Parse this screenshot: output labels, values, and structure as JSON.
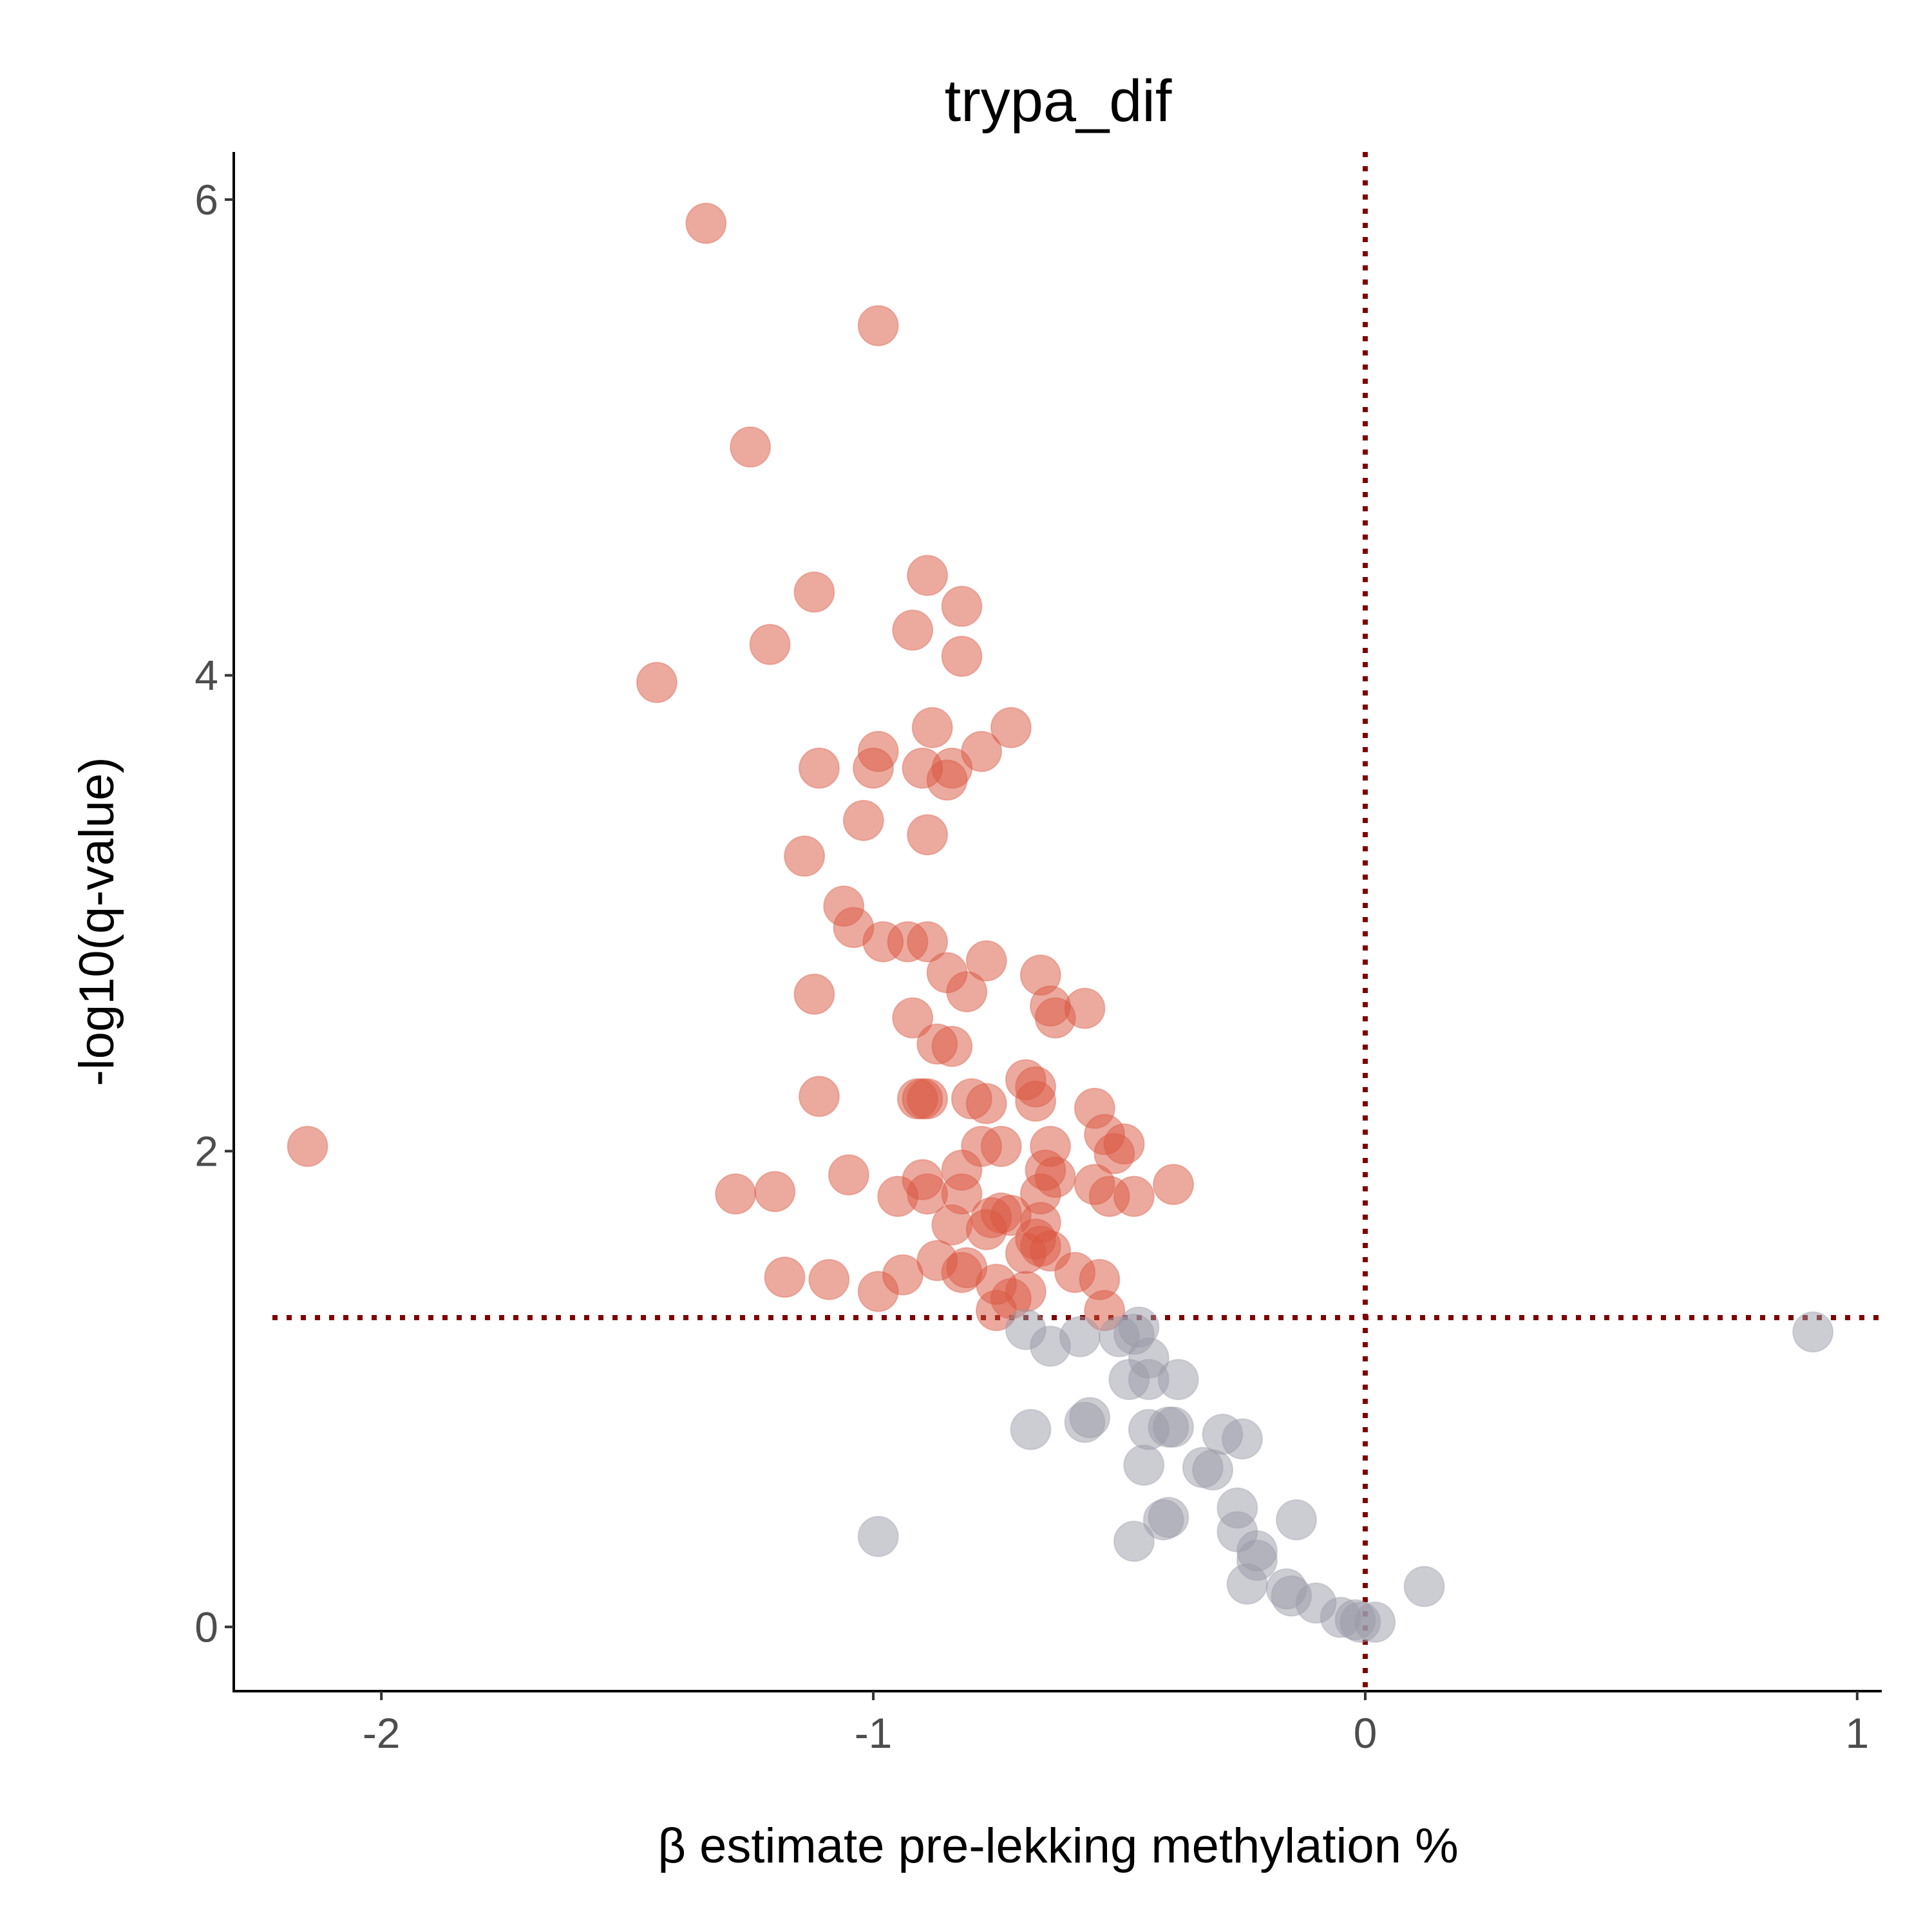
{
  "chart_data": {
    "type": "scatter",
    "title": "trypa_dif",
    "xlabel": "β estimate pre-lekking methylation %",
    "ylabel": "-log10(q-value)",
    "xlim": [
      -2.3,
      1.05
    ],
    "ylim": [
      -0.27,
      6.2
    ],
    "xticks": [
      -2,
      -1,
      0,
      1
    ],
    "xtick_labels": [
      "-2",
      "-1",
      "0",
      "1"
    ],
    "yticks": [
      0,
      2,
      4,
      6
    ],
    "ytick_labels": [
      "0",
      "2",
      "4",
      "6"
    ],
    "grid": false,
    "reference_lines": {
      "vertical_x": 0,
      "horizontal_y": 1.3,
      "color": "#800000",
      "style": "dotted"
    },
    "colors": {
      "significant": "#d9553f",
      "not_significant": "#9a9aa8"
    },
    "series": [
      {
        "color_key": "significant",
        "points": [
          [
            -1.34,
            5.9
          ],
          [
            -0.99,
            5.47
          ],
          [
            -1.25,
            4.96
          ],
          [
            -0.89,
            4.42
          ],
          [
            -1.12,
            4.35
          ],
          [
            -0.82,
            4.29
          ],
          [
            -1.21,
            4.13
          ],
          [
            -0.92,
            4.19
          ],
          [
            -0.82,
            4.08
          ],
          [
            -1.44,
            3.97
          ],
          [
            -0.88,
            3.78
          ],
          [
            -0.72,
            3.78
          ],
          [
            -0.99,
            3.68
          ],
          [
            -0.78,
            3.68
          ],
          [
            -1.11,
            3.61
          ],
          [
            -1.0,
            3.61
          ],
          [
            -0.9,
            3.61
          ],
          [
            -0.85,
            3.56
          ],
          [
            -0.84,
            3.61
          ],
          [
            -1.02,
            3.39
          ],
          [
            -0.89,
            3.33
          ],
          [
            -1.14,
            3.24
          ],
          [
            -1.06,
            3.03
          ],
          [
            -1.04,
            2.94
          ],
          [
            -0.98,
            2.88
          ],
          [
            -0.93,
            2.88
          ],
          [
            -0.89,
            2.88
          ],
          [
            -0.77,
            2.8
          ],
          [
            -0.85,
            2.75
          ],
          [
            -0.66,
            2.74
          ],
          [
            -0.81,
            2.67
          ],
          [
            -1.12,
            2.66
          ],
          [
            -0.64,
            2.61
          ],
          [
            -0.57,
            2.6
          ],
          [
            -0.92,
            2.56
          ],
          [
            -0.63,
            2.56
          ],
          [
            -0.87,
            2.45
          ],
          [
            -0.84,
            2.44
          ],
          [
            -0.69,
            2.3
          ],
          [
            -0.67,
            2.27
          ],
          [
            -0.67,
            2.21
          ],
          [
            -1.11,
            2.23
          ],
          [
            -0.91,
            2.22
          ],
          [
            -0.9,
            2.22
          ],
          [
            -0.89,
            2.22
          ],
          [
            -0.8,
            2.22
          ],
          [
            -0.77,
            2.2
          ],
          [
            -0.55,
            2.18
          ],
          [
            -0.53,
            2.07
          ],
          [
            -0.49,
            2.03
          ],
          [
            -0.51,
            1.99
          ],
          [
            -0.78,
            2.02
          ],
          [
            -0.74,
            2.02
          ],
          [
            -0.64,
            2.02
          ],
          [
            -0.65,
            1.92
          ],
          [
            -0.63,
            1.89
          ],
          [
            -0.82,
            1.92
          ],
          [
            -1.05,
            1.9
          ],
          [
            -0.9,
            1.88
          ],
          [
            -0.55,
            1.86
          ],
          [
            -0.39,
            1.86
          ],
          [
            -1.28,
            1.82
          ],
          [
            -1.2,
            1.83
          ],
          [
            -0.95,
            1.81
          ],
          [
            -0.89,
            1.82
          ],
          [
            -0.82,
            1.82
          ],
          [
            -0.66,
            1.82
          ],
          [
            -0.52,
            1.81
          ],
          [
            -0.47,
            1.81
          ],
          [
            -0.76,
            1.72
          ],
          [
            -0.74,
            1.74
          ],
          [
            -0.72,
            1.73
          ],
          [
            -0.66,
            1.7
          ],
          [
            -0.84,
            1.69
          ],
          [
            -0.77,
            1.67
          ],
          [
            -0.67,
            1.63
          ],
          [
            -0.66,
            1.6
          ],
          [
            -0.64,
            1.58
          ],
          [
            -0.69,
            1.57
          ],
          [
            -0.87,
            1.54
          ],
          [
            -0.82,
            1.49
          ],
          [
            -0.81,
            1.51
          ],
          [
            -0.59,
            1.49
          ],
          [
            -0.54,
            1.46
          ],
          [
            -1.18,
            1.47
          ],
          [
            -1.09,
            1.46
          ],
          [
            -0.94,
            1.48
          ],
          [
            -0.75,
            1.44
          ],
          [
            -0.72,
            1.38
          ],
          [
            -0.69,
            1.41
          ],
          [
            -0.99,
            1.41
          ],
          [
            -0.53,
            1.33
          ],
          [
            -0.75,
            1.33
          ],
          [
            -2.15,
            2.02
          ]
        ]
      },
      {
        "color_key": "not_significant",
        "points": [
          [
            -0.69,
            1.25
          ],
          [
            -0.64,
            1.18
          ],
          [
            -0.58,
            1.22
          ],
          [
            -0.5,
            1.22
          ],
          [
            -0.47,
            1.23
          ],
          [
            -0.46,
            1.26
          ],
          [
            -0.44,
            1.13
          ],
          [
            -0.48,
            1.04
          ],
          [
            -0.44,
            1.04
          ],
          [
            -0.38,
            1.04
          ],
          [
            -0.57,
            0.86
          ],
          [
            -0.56,
            0.88
          ],
          [
            -0.68,
            0.83
          ],
          [
            -0.44,
            0.83
          ],
          [
            -0.4,
            0.84
          ],
          [
            -0.39,
            0.84
          ],
          [
            -0.29,
            0.81
          ],
          [
            -0.25,
            0.79
          ],
          [
            -0.45,
            0.68
          ],
          [
            -0.33,
            0.67
          ],
          [
            -0.31,
            0.66
          ],
          [
            -0.26,
            0.5
          ],
          [
            -0.14,
            0.45
          ],
          [
            -0.4,
            0.46
          ],
          [
            -0.41,
            0.45
          ],
          [
            -0.26,
            0.4
          ],
          [
            -0.22,
            0.32
          ],
          [
            -0.22,
            0.28
          ],
          [
            -0.47,
            0.36
          ],
          [
            -0.99,
            0.38
          ],
          [
            -0.24,
            0.18
          ],
          [
            -0.16,
            0.16
          ],
          [
            -0.15,
            0.13
          ],
          [
            -0.1,
            0.1
          ],
          [
            -0.05,
            0.04
          ],
          [
            -0.02,
            0.03
          ],
          [
            -0.01,
            0.02
          ],
          [
            0.02,
            0.02
          ],
          [
            0.12,
            0.17
          ],
          [
            0.91,
            1.24
          ]
        ]
      }
    ]
  }
}
